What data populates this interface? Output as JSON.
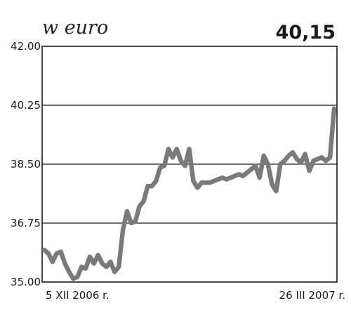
{
  "chart_data": {
    "type": "line",
    "unit_label": "w euro",
    "last_value_label": "40,15",
    "ylim": [
      35.0,
      42.0
    ],
    "yticks": [
      "42.00",
      "40.25",
      "38.50",
      "36.75",
      "35.00"
    ],
    "ytick_values": [
      42.0,
      40.25,
      38.5,
      36.75,
      35.0
    ],
    "x_start_label": "5 XII 2006 r.",
    "x_end_label": "26 III 2007 r.",
    "grid": "horizontal",
    "colors": {
      "line": "#7a7a7a",
      "grid": "#1a1a1a",
      "axis": "#1a1a1a"
    },
    "series": [
      {
        "values": [
          35.95,
          35.85,
          35.6,
          35.85,
          35.9,
          35.55,
          35.3,
          35.1,
          35.15,
          35.45,
          35.4,
          35.75,
          35.55,
          35.8,
          35.55,
          35.45,
          35.6,
          35.3,
          35.45,
          36.55,
          37.1,
          36.75,
          36.8,
          37.25,
          37.4,
          37.85,
          37.85,
          38.0,
          38.4,
          38.45,
          38.95,
          38.7,
          38.95,
          38.6,
          38.45,
          38.95,
          38.0,
          37.8,
          37.95,
          37.95,
          37.95,
          38.0,
          38.05,
          38.1,
          38.05,
          38.1,
          38.15,
          38.2,
          38.15,
          38.25,
          38.35,
          38.45,
          38.1,
          38.75,
          38.5,
          37.9,
          37.7,
          38.5,
          38.6,
          38.75,
          38.85,
          38.65,
          38.55,
          38.8,
          38.3,
          38.6,
          38.65,
          38.7,
          38.6,
          38.7,
          40.15
        ]
      }
    ]
  }
}
